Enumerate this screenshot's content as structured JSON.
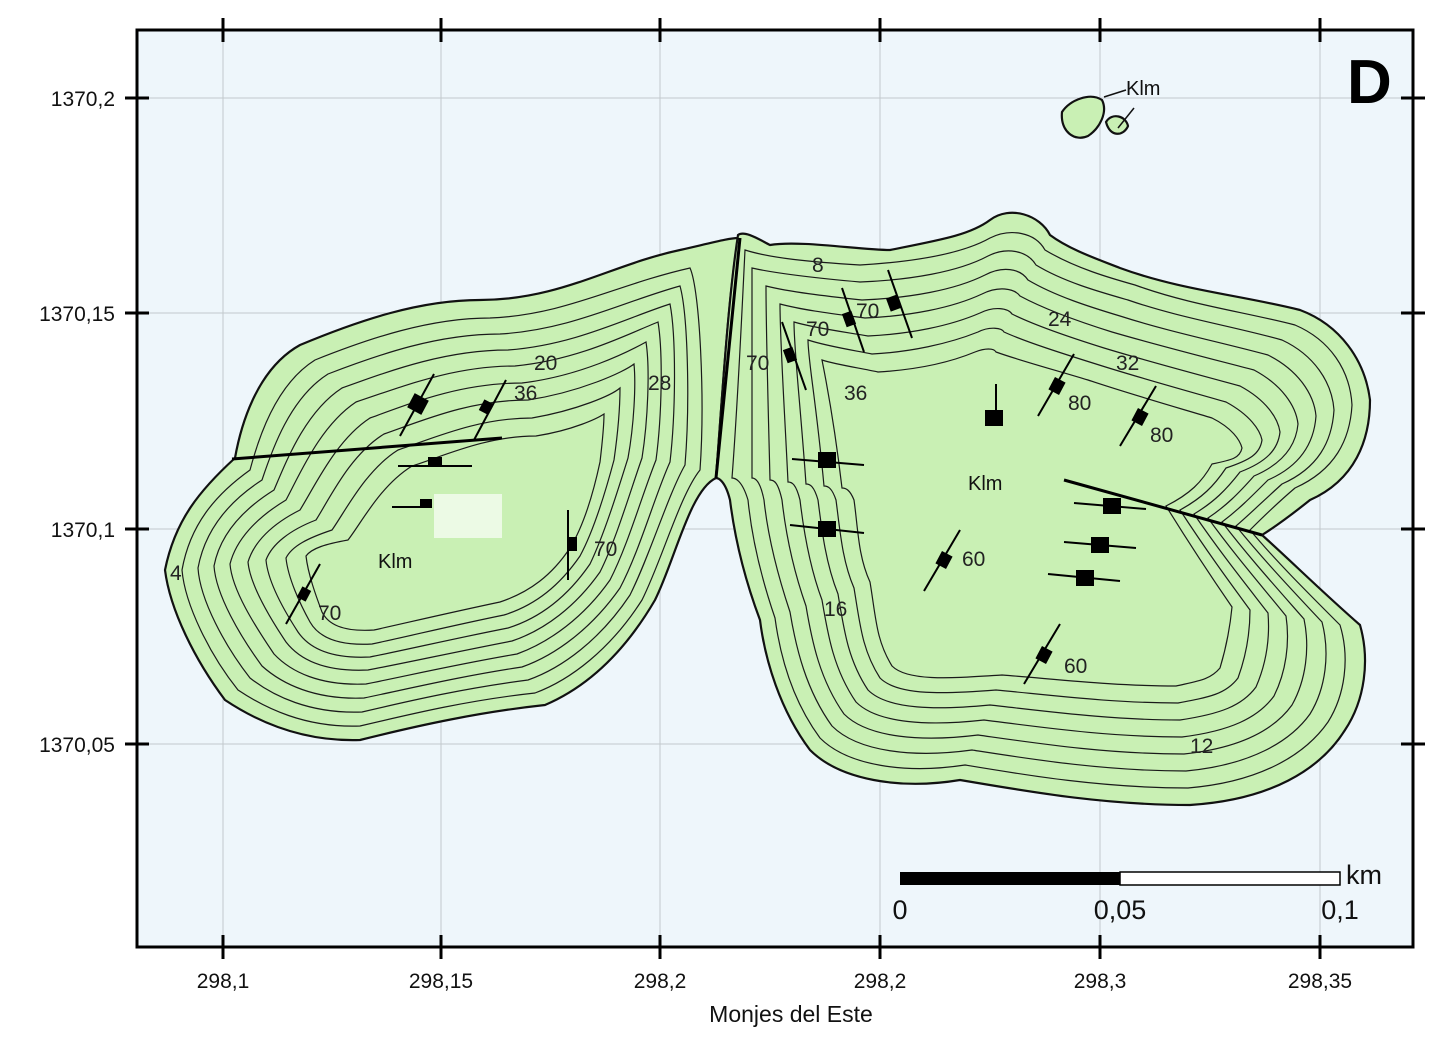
{
  "panel_letter": "D",
  "location_name": "Monjes del Este",
  "x_axis": {
    "ticks": [
      "298,1",
      "298,15",
      "298,2",
      "298,2",
      "298,3",
      "298,35"
    ]
  },
  "y_axis": {
    "ticks": [
      "1370,2",
      "1370,15",
      "1370,1",
      "1370,05"
    ]
  },
  "scale_bar": {
    "unit": "km",
    "labels": [
      "0",
      "0,05",
      "0,1"
    ]
  },
  "unit_labels": [
    "Klm",
    "Klm",
    "Klm"
  ],
  "contour_labels": [
    "4",
    "20",
    "36",
    "28",
    "70",
    "70",
    "8",
    "70",
    "70",
    "70",
    "24",
    "32",
    "36",
    "80",
    "80",
    "60",
    "16",
    "60",
    "12"
  ],
  "colors": {
    "water": "#eef6fb",
    "land": "#c9f0b4",
    "lines": "#111111"
  }
}
